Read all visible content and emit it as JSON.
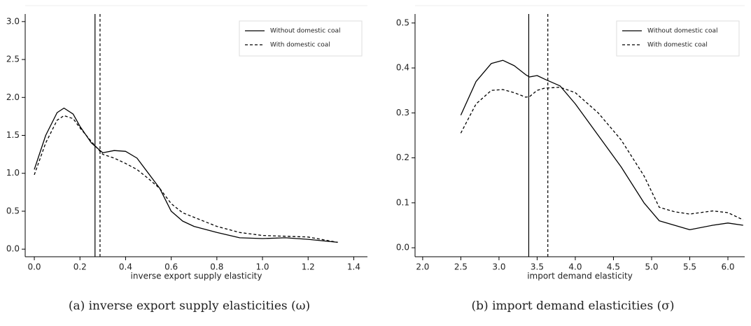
{
  "chart_data": [
    {
      "type": "line",
      "caption": "(a) inverse export supply elasticities (ω)",
      "xlabel": "inverse export supply elasticity",
      "x": [
        0,
        0.05,
        0.1,
        0.13,
        0.17,
        0.2,
        0.25,
        0.3,
        0.35,
        0.4,
        0.45,
        0.5,
        0.55,
        0.6,
        0.65,
        0.7,
        0.8,
        0.9,
        1.0,
        1.1,
        1.2,
        1.33
      ],
      "series": [
        {
          "name": "Without domestic coal",
          "color": "#000000",
          "linestyle": "solid",
          "vline": 0.266,
          "values": [
            1.05,
            1.5,
            1.8,
            1.86,
            1.78,
            1.62,
            1.4,
            1.27,
            1.3,
            1.29,
            1.2,
            1.0,
            0.8,
            0.5,
            0.37,
            0.3,
            0.22,
            0.15,
            0.14,
            0.15,
            0.13,
            0.09
          ]
        },
        {
          "name": "With domestic coal",
          "color": "#000000",
          "linestyle": "dashed",
          "vline": 0.288,
          "values": [
            0.98,
            1.4,
            1.7,
            1.76,
            1.72,
            1.6,
            1.42,
            1.25,
            1.2,
            1.13,
            1.05,
            0.93,
            0.8,
            0.6,
            0.48,
            0.42,
            0.3,
            0.22,
            0.18,
            0.17,
            0.16,
            0.09
          ]
        }
      ],
      "xlim": [
        -0.04,
        1.46
      ],
      "ylim": [
        -0.1,
        3.1
      ],
      "xticks": [
        {
          "value": 0,
          "label": "0.0"
        },
        0.2,
        0.4,
        0.6,
        0.8,
        {
          "value": 1,
          "label": "1.0"
        },
        1.2,
        1.4
      ],
      "yticks": [
        {
          "value": 0,
          "label": "0.0"
        },
        0.5,
        {
          "value": 1,
          "label": "1.0"
        },
        1.5,
        {
          "value": 2,
          "label": "2.0"
        },
        2.5,
        {
          "value": 3,
          "label": "3.0"
        }
      ],
      "legend": "upper right"
    },
    {
      "type": "line",
      "caption": "(b) import demand elasticities (σ)",
      "xlabel": "import demand elasticity",
      "x": [
        2.5,
        2.7,
        2.9,
        3.05,
        3.2,
        3.35,
        3.4,
        3.5,
        3.6,
        3.8,
        4.0,
        4.3,
        4.6,
        4.9,
        5.1,
        5.3,
        5.5,
        5.8,
        6.0,
        6.2
      ],
      "series": [
        {
          "name": "Without domestic coal",
          "color": "#000000",
          "linestyle": "solid",
          "vline": 3.39,
          "values": [
            0.295,
            0.37,
            0.41,
            0.417,
            0.405,
            0.385,
            0.38,
            0.383,
            0.375,
            0.36,
            0.32,
            0.25,
            0.18,
            0.1,
            0.06,
            0.05,
            0.04,
            0.05,
            0.055,
            0.05
          ]
        },
        {
          "name": "With domestic coal",
          "color": "#000000",
          "linestyle": "dashed",
          "vline": 3.64,
          "values": [
            0.255,
            0.32,
            0.35,
            0.352,
            0.345,
            0.335,
            0.336,
            0.35,
            0.355,
            0.357,
            0.345,
            0.3,
            0.24,
            0.16,
            0.09,
            0.08,
            0.075,
            0.082,
            0.078,
            0.062
          ]
        }
      ],
      "xlim": [
        1.9,
        6.22
      ],
      "ylim": [
        -0.02,
        0.52
      ],
      "xticks": [
        {
          "value": 2,
          "label": "2.0"
        },
        2.5,
        {
          "value": 3,
          "label": "3.0"
        },
        3.5,
        {
          "value": 4,
          "label": "4.0"
        },
        4.5,
        {
          "value": 5,
          "label": "5.0"
        },
        5.5,
        {
          "value": 6,
          "label": "6.0"
        }
      ],
      "yticks": [
        {
          "value": 0,
          "label": "0.0"
        },
        0.1,
        0.2,
        0.3,
        0.4,
        0.5
      ],
      "legend": "upper right"
    }
  ]
}
